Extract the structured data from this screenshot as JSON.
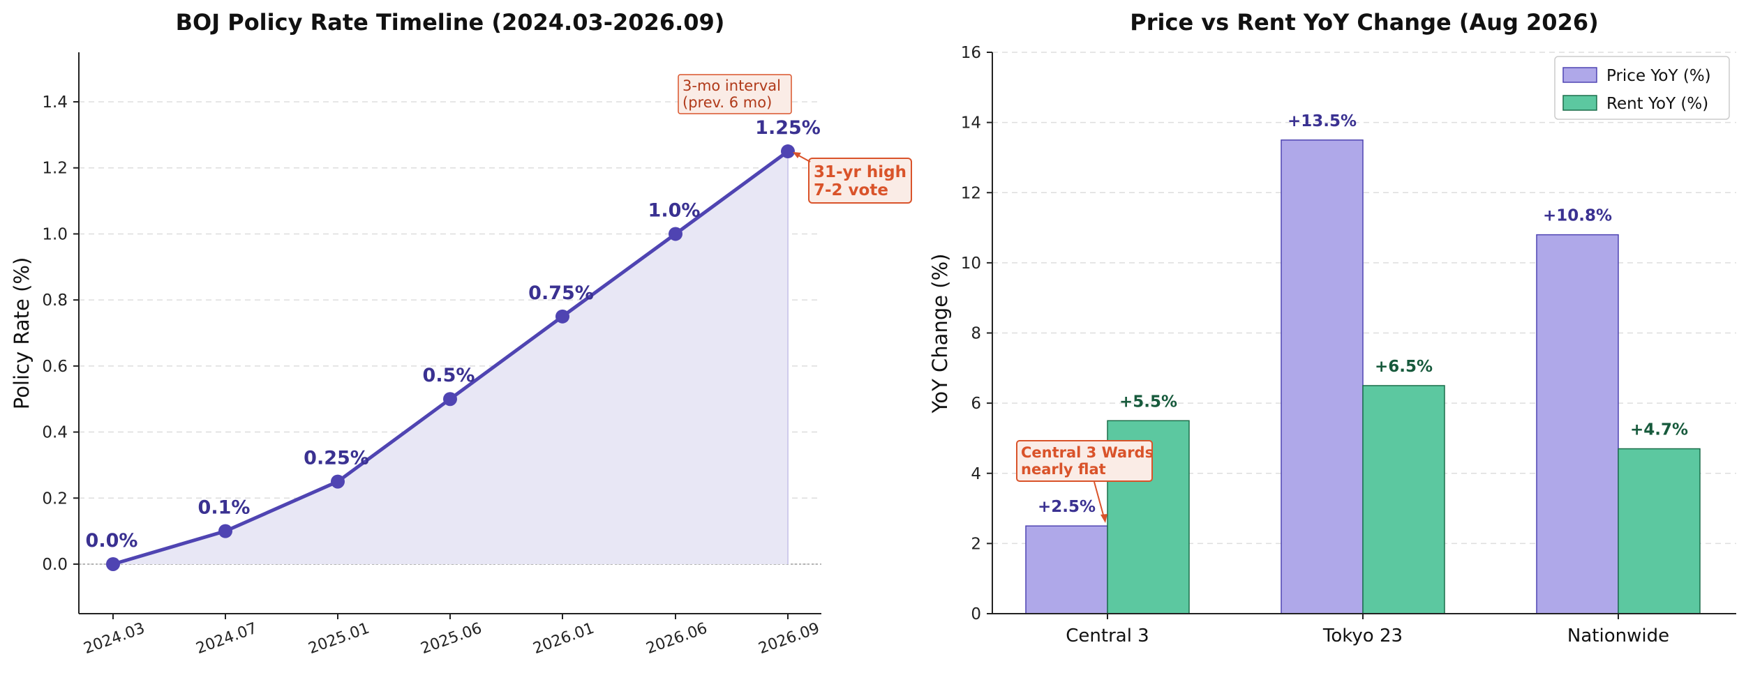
{
  "charts": [
    {
      "type": "line",
      "title": "BOJ Policy Rate Timeline (2024.03-2026.09)",
      "xlabel": "",
      "ylabel": "Policy Rate (%)",
      "ylim": [
        -0.15,
        1.55
      ],
      "yticks": [
        "0.0",
        "0.2",
        "0.4",
        "0.6",
        "0.8",
        "1.0",
        "1.2",
        "1.4"
      ],
      "grid": "y-dashed",
      "series": [
        {
          "x": [
            "2024.03",
            "2024.07",
            "2025.01",
            "2025.06",
            "2026.01",
            "2026.06",
            "2026.09"
          ],
          "y": [
            0.0,
            0.1,
            0.25,
            0.5,
            0.75,
            1.0,
            1.25
          ],
          "labels": [
            "0.0%",
            "0.1%",
            "0.25%",
            "0.5%",
            "0.75%",
            "1.0%",
            "1.25%"
          ]
        }
      ],
      "annotations": [
        {
          "lines": [
            "31-yr high",
            "7-2 vote"
          ],
          "target": "2026.09"
        },
        {
          "lines": [
            "3-mo interval",
            "(prev. 6 mo)"
          ]
        }
      ],
      "colors": {
        "line": "#4f44b2",
        "fill": "#e8e7f5",
        "annotation": "#d9532a",
        "annotation_bg": "#faece6"
      }
    },
    {
      "type": "bar",
      "title": "Price vs Rent YoY Change (Aug 2026)",
      "xlabel": "",
      "ylabel": "YoY Change (%)",
      "ylim": [
        0,
        16
      ],
      "yticks": [
        "0",
        "2",
        "4",
        "6",
        "8",
        "10",
        "12",
        "14",
        "16"
      ],
      "grid": "y-dashed",
      "legend": "top-right",
      "categories": [
        "Central 3",
        "Tokyo 23",
        "Nationwide"
      ],
      "series": [
        {
          "name": "Price YoY (%)",
          "values": [
            2.5,
            13.5,
            10.8
          ],
          "labels": [
            "+2.5%",
            "+13.5%",
            "+10.8%"
          ],
          "color": "#afa8e9",
          "edge": "#4f44b2",
          "label_color": "#3a3191"
        },
        {
          "name": "Rent YoY (%)",
          "values": [
            5.5,
            6.5,
            4.7
          ],
          "labels": [
            "+5.5%",
            "+6.5%",
            "+4.7%"
          ],
          "color": "#5cc8a0",
          "edge": "#1b6e4a",
          "label_color": "#175a3c"
        }
      ],
      "annotations": [
        {
          "lines": [
            "Central 3 Wards",
            "nearly flat"
          ],
          "target": "Central 3"
        }
      ]
    }
  ]
}
